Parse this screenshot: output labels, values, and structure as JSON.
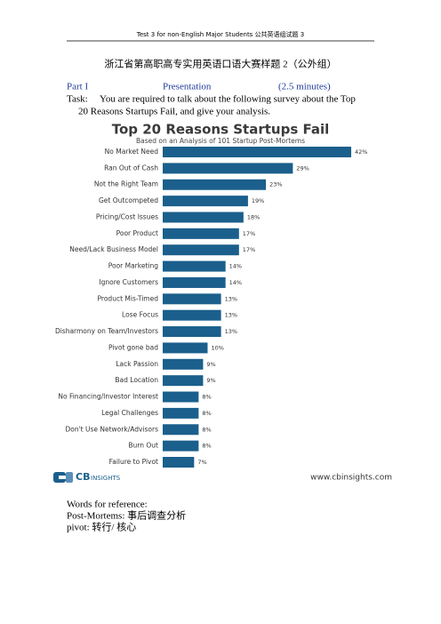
{
  "header": "Test 3 for non-English Major Students  公共英语组试题  3",
  "title": "浙江省第高职高专实用英语口语大赛样题 2（公外组）",
  "part": {
    "label": "Part I",
    "name": "Presentation",
    "time": "(2.5 minutes)"
  },
  "task": {
    "label": "Task:",
    "lines": [
      "You are required to talk about the following survey about the Top",
      "20 Reasons Startups Fail, and give your analysis."
    ]
  },
  "chart_data": {
    "type": "hbar",
    "title": "Top 20 Reasons Startups Fail",
    "subtitle": "Based on an Analysis of 101 Startup Post-Mortems",
    "color": "#1b5f8c",
    "categories": [
      "No Market Need",
      "Ran Out of Cash",
      "Not the Right Team",
      "Get Outcompeted",
      "Pricing/Cost Issues",
      "Poor Product",
      "Need/Lack Business Model",
      "Poor Marketing",
      "Ignore Customers",
      "Product Mis-Timed",
      "Lose Focus",
      "Disharmony on Team/Investors",
      "Pivot gone bad",
      "Lack Passion",
      "Bad Location",
      "No Financing/Investor Interest",
      "Legal Challenges",
      "Don't Use Network/Advisors",
      "Burn Out",
      "Failure to Pivot"
    ],
    "values": [
      42,
      29,
      23,
      19,
      18,
      17,
      17,
      14,
      14,
      13,
      13,
      13,
      10,
      9,
      9,
      8,
      8,
      8,
      8,
      7
    ],
    "value_labels": [
      "42%",
      "29%",
      "23%",
      "19%",
      "18%",
      "17%",
      "17%",
      "14%",
      "14%",
      "13%",
      "13%",
      "13%",
      "10%",
      "9%",
      "9%",
      "8%",
      "8%",
      "8%",
      "8%",
      "7%"
    ]
  },
  "logo": {
    "mark": "CB",
    "name": "INSIGHTS"
  },
  "source": "www.cbinsights.com",
  "reference": {
    "heading": "Words for reference:",
    "items": [
      "Post-Mortems:  事后调查分析",
      "pivot:  转行/  核心"
    ]
  }
}
